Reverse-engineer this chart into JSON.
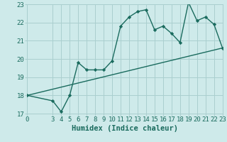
{
  "xlabel": "Humidex (Indice chaleur)",
  "ylabel": "",
  "bg_color": "#ceeaea",
  "grid_color": "#aacfcf",
  "line_color": "#1a6b5e",
  "curve_x": [
    0,
    3,
    4,
    5,
    6,
    7,
    8,
    9,
    10,
    11,
    12,
    13,
    14,
    15,
    16,
    17,
    18,
    19,
    20,
    21,
    22,
    23
  ],
  "curve_y": [
    18.0,
    17.7,
    17.1,
    18.0,
    19.8,
    19.4,
    19.4,
    19.4,
    19.9,
    21.8,
    22.3,
    22.6,
    22.7,
    21.6,
    21.8,
    21.4,
    20.9,
    23.1,
    22.1,
    22.3,
    21.9,
    20.6
  ],
  "trend_x": [
    0,
    23
  ],
  "trend_y": [
    18.0,
    20.6
  ],
  "xlim": [
    0,
    23
  ],
  "ylim": [
    17,
    23
  ],
  "yticks": [
    17,
    18,
    19,
    20,
    21,
    22,
    23
  ],
  "xticks": [
    0,
    3,
    4,
    5,
    6,
    7,
    8,
    9,
    10,
    11,
    12,
    13,
    14,
    15,
    16,
    17,
    18,
    19,
    20,
    21,
    22,
    23
  ],
  "marker": "D",
  "marker_size": 2.2,
  "line_width": 1.0,
  "xlabel_fontsize": 7.5,
  "tick_fontsize": 6.5
}
